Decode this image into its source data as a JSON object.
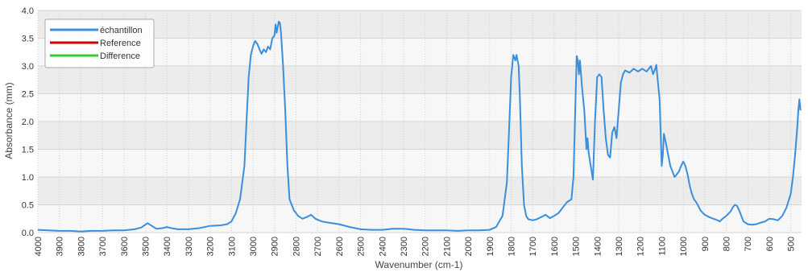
{
  "chart_data": {
    "type": "line",
    "title": "",
    "xlabel": "Wavenumber (cm-1)",
    "ylabel": "Absorbance (mm)",
    "xlim": [
      4000,
      450
    ],
    "ylim": [
      0,
      4.0
    ],
    "x_reversed": true,
    "grid": true,
    "legend_position": "top-left",
    "xticks": [
      4000,
      3900,
      3800,
      3700,
      3600,
      3500,
      3400,
      3300,
      3200,
      3100,
      3000,
      2900,
      2800,
      2700,
      2600,
      2500,
      2400,
      2300,
      2200,
      2100,
      2000,
      1900,
      1800,
      1700,
      1600,
      1500,
      1400,
      1300,
      1200,
      1100,
      1000,
      900,
      800,
      700,
      600,
      500
    ],
    "yticks": [
      0.0,
      0.5,
      1.0,
      1.5,
      2.0,
      2.5,
      3.0,
      3.5,
      4.0
    ],
    "ytick_labels": [
      "0.0",
      "0.5",
      "1.0",
      "1.5",
      "2.0",
      "2.5",
      "3.0",
      "3.5",
      "4.0"
    ],
    "series": [
      {
        "name": "échantillon",
        "color": "#3a8fdc",
        "points": [
          [
            4000,
            0.05
          ],
          [
            3950,
            0.04
          ],
          [
            3900,
            0.03
          ],
          [
            3850,
            0.03
          ],
          [
            3800,
            0.02
          ],
          [
            3750,
            0.03
          ],
          [
            3700,
            0.03
          ],
          [
            3650,
            0.04
          ],
          [
            3600,
            0.04
          ],
          [
            3550,
            0.06
          ],
          [
            3520,
            0.09
          ],
          [
            3490,
            0.17
          ],
          [
            3470,
            0.12
          ],
          [
            3450,
            0.07
          ],
          [
            3420,
            0.08
          ],
          [
            3400,
            0.1
          ],
          [
            3380,
            0.08
          ],
          [
            3350,
            0.06
          ],
          [
            3300,
            0.06
          ],
          [
            3250,
            0.08
          ],
          [
            3200,
            0.12
          ],
          [
            3150,
            0.13
          ],
          [
            3120,
            0.15
          ],
          [
            3100,
            0.2
          ],
          [
            3080,
            0.35
          ],
          [
            3060,
            0.6
          ],
          [
            3040,
            1.2
          ],
          [
            3030,
            2.0
          ],
          [
            3020,
            2.8
          ],
          [
            3010,
            3.2
          ],
          [
            3000,
            3.35
          ],
          [
            2990,
            3.45
          ],
          [
            2980,
            3.4
          ],
          [
            2970,
            3.3
          ],
          [
            2960,
            3.22
          ],
          [
            2950,
            3.3
          ],
          [
            2940,
            3.25
          ],
          [
            2930,
            3.35
          ],
          [
            2920,
            3.3
          ],
          [
            2910,
            3.5
          ],
          [
            2900,
            3.55
          ],
          [
            2895,
            3.75
          ],
          [
            2890,
            3.6
          ],
          [
            2880,
            3.8
          ],
          [
            2875,
            3.78
          ],
          [
            2870,
            3.6
          ],
          [
            2860,
            3.0
          ],
          [
            2850,
            2.2
          ],
          [
            2840,
            1.2
          ],
          [
            2830,
            0.6
          ],
          [
            2810,
            0.4
          ],
          [
            2790,
            0.3
          ],
          [
            2770,
            0.25
          ],
          [
            2750,
            0.28
          ],
          [
            2730,
            0.32
          ],
          [
            2710,
            0.25
          ],
          [
            2680,
            0.2
          ],
          [
            2650,
            0.18
          ],
          [
            2600,
            0.15
          ],
          [
            2550,
            0.1
          ],
          [
            2500,
            0.06
          ],
          [
            2450,
            0.05
          ],
          [
            2400,
            0.05
          ],
          [
            2350,
            0.07
          ],
          [
            2300,
            0.07
          ],
          [
            2250,
            0.05
          ],
          [
            2200,
            0.04
          ],
          [
            2150,
            0.04
          ],
          [
            2100,
            0.04
          ],
          [
            2050,
            0.03
          ],
          [
            2000,
            0.04
          ],
          [
            1950,
            0.04
          ],
          [
            1900,
            0.05
          ],
          [
            1870,
            0.1
          ],
          [
            1840,
            0.3
          ],
          [
            1820,
            0.9
          ],
          [
            1810,
            1.8
          ],
          [
            1800,
            2.8
          ],
          [
            1790,
            3.2
          ],
          [
            1780,
            3.1
          ],
          [
            1775,
            3.2
          ],
          [
            1765,
            3.0
          ],
          [
            1760,
            2.5
          ],
          [
            1750,
            1.2
          ],
          [
            1740,
            0.5
          ],
          [
            1730,
            0.3
          ],
          [
            1720,
            0.24
          ],
          [
            1700,
            0.22
          ],
          [
            1680,
            0.24
          ],
          [
            1660,
            0.28
          ],
          [
            1640,
            0.32
          ],
          [
            1620,
            0.26
          ],
          [
            1600,
            0.3
          ],
          [
            1580,
            0.35
          ],
          [
            1560,
            0.45
          ],
          [
            1540,
            0.55
          ],
          [
            1520,
            0.6
          ],
          [
            1510,
            1.0
          ],
          [
            1500,
            2.5
          ],
          [
            1495,
            3.18
          ],
          [
            1490,
            3.1
          ],
          [
            1485,
            2.85
          ],
          [
            1480,
            3.1
          ],
          [
            1470,
            2.6
          ],
          [
            1460,
            2.2
          ],
          [
            1450,
            1.5
          ],
          [
            1445,
            1.7
          ],
          [
            1440,
            1.45
          ],
          [
            1430,
            1.2
          ],
          [
            1420,
            0.95
          ],
          [
            1410,
            2.0
          ],
          [
            1400,
            2.8
          ],
          [
            1390,
            2.85
          ],
          [
            1380,
            2.8
          ],
          [
            1370,
            2.2
          ],
          [
            1360,
            1.7
          ],
          [
            1350,
            1.4
          ],
          [
            1340,
            1.35
          ],
          [
            1330,
            1.8
          ],
          [
            1320,
            1.9
          ],
          [
            1310,
            1.7
          ],
          [
            1300,
            2.2
          ],
          [
            1290,
            2.7
          ],
          [
            1280,
            2.85
          ],
          [
            1270,
            2.92
          ],
          [
            1250,
            2.88
          ],
          [
            1230,
            2.95
          ],
          [
            1210,
            2.9
          ],
          [
            1190,
            2.95
          ],
          [
            1170,
            2.9
          ],
          [
            1150,
            3.0
          ],
          [
            1140,
            2.85
          ],
          [
            1130,
            2.95
          ],
          [
            1125,
            3.02
          ],
          [
            1120,
            2.8
          ],
          [
            1110,
            2.4
          ],
          [
            1100,
            1.2
          ],
          [
            1095,
            1.4
          ],
          [
            1090,
            1.78
          ],
          [
            1080,
            1.6
          ],
          [
            1070,
            1.4
          ],
          [
            1060,
            1.2
          ],
          [
            1050,
            1.1
          ],
          [
            1040,
            1.0
          ],
          [
            1030,
            1.05
          ],
          [
            1020,
            1.1
          ],
          [
            1010,
            1.2
          ],
          [
            1000,
            1.28
          ],
          [
            990,
            1.2
          ],
          [
            980,
            1.05
          ],
          [
            970,
            0.85
          ],
          [
            960,
            0.7
          ],
          [
            950,
            0.6
          ],
          [
            940,
            0.55
          ],
          [
            930,
            0.48
          ],
          [
            920,
            0.4
          ],
          [
            900,
            0.32
          ],
          [
            880,
            0.28
          ],
          [
            860,
            0.25
          ],
          [
            840,
            0.22
          ],
          [
            830,
            0.2
          ],
          [
            820,
            0.24
          ],
          [
            800,
            0.3
          ],
          [
            780,
            0.38
          ],
          [
            770,
            0.45
          ],
          [
            760,
            0.5
          ],
          [
            750,
            0.48
          ],
          [
            740,
            0.4
          ],
          [
            730,
            0.3
          ],
          [
            720,
            0.2
          ],
          [
            700,
            0.15
          ],
          [
            680,
            0.14
          ],
          [
            660,
            0.15
          ],
          [
            640,
            0.18
          ],
          [
            620,
            0.2
          ],
          [
            600,
            0.25
          ],
          [
            580,
            0.24
          ],
          [
            560,
            0.22
          ],
          [
            540,
            0.3
          ],
          [
            520,
            0.45
          ],
          [
            500,
            0.7
          ],
          [
            490,
            1.0
          ],
          [
            480,
            1.4
          ],
          [
            470,
            1.9
          ],
          [
            465,
            2.2
          ],
          [
            460,
            2.4
          ],
          [
            455,
            2.2
          ]
        ]
      },
      {
        "name": "Reference",
        "color": "#cc0000",
        "points": []
      },
      {
        "name": "Difference",
        "color": "#33cc33",
        "points": []
      }
    ]
  }
}
